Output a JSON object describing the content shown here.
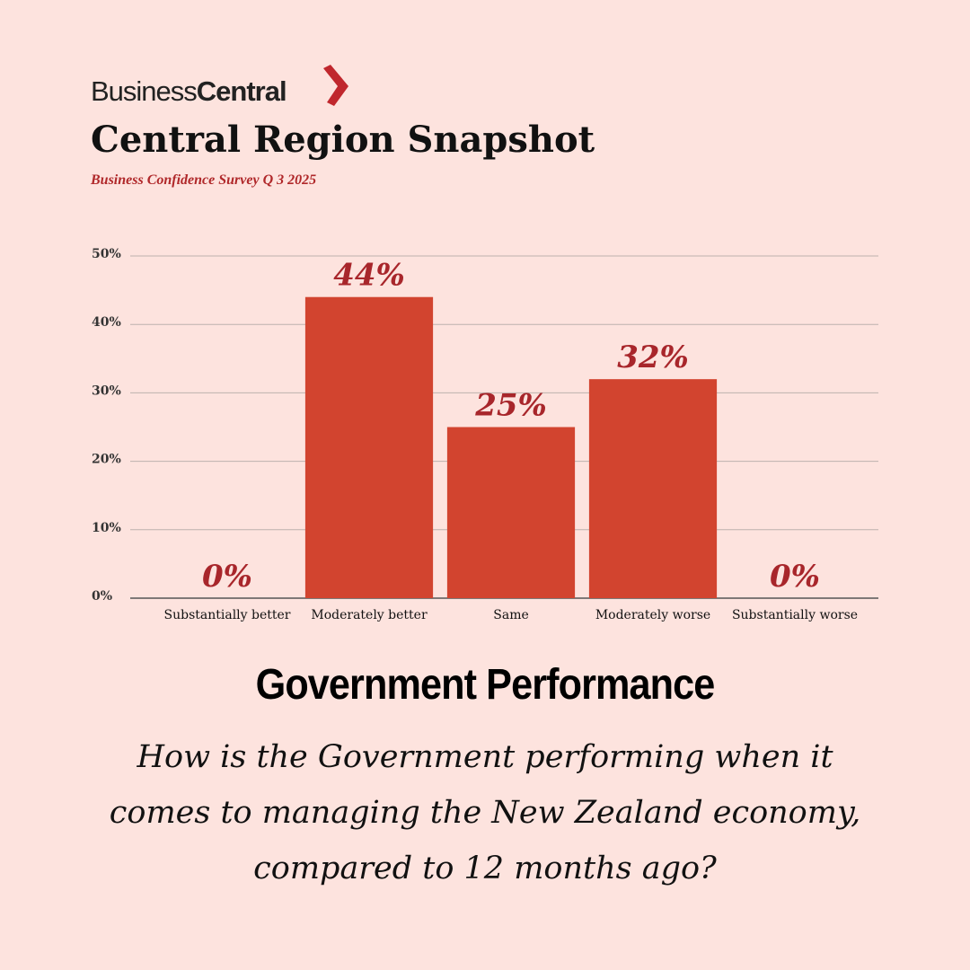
{
  "brand": {
    "part1": "Business",
    "part2": "Central"
  },
  "header": {
    "title": "Central Region Snapshot",
    "subtitle": "Business Confidence Survey Q 3 2025"
  },
  "chart_data": {
    "type": "bar",
    "title": "Government Performance",
    "subtitle": "How is the Government performing when it comes to managing the New Zealand economy, compared to 12 months ago?",
    "categories": [
      "Substantially better",
      "Moderately better",
      "Same",
      "Moderately worse",
      "Substantially worse"
    ],
    "values": [
      0,
      44,
      25,
      32,
      0
    ],
    "value_labels": [
      "0%",
      "44%",
      "25%",
      "32%",
      "0%"
    ],
    "color": "#d2442f",
    "ylim": [
      0,
      50
    ],
    "yticks": [
      {
        "value": 0,
        "label": "0%"
      },
      {
        "value": 10,
        "label": "10%"
      },
      {
        "value": 20,
        "label": "20%"
      },
      {
        "value": 30,
        "label": "30%"
      },
      {
        "value": 40,
        "label": "40%"
      },
      {
        "value": 50,
        "label": "50%"
      }
    ],
    "grid": true
  }
}
